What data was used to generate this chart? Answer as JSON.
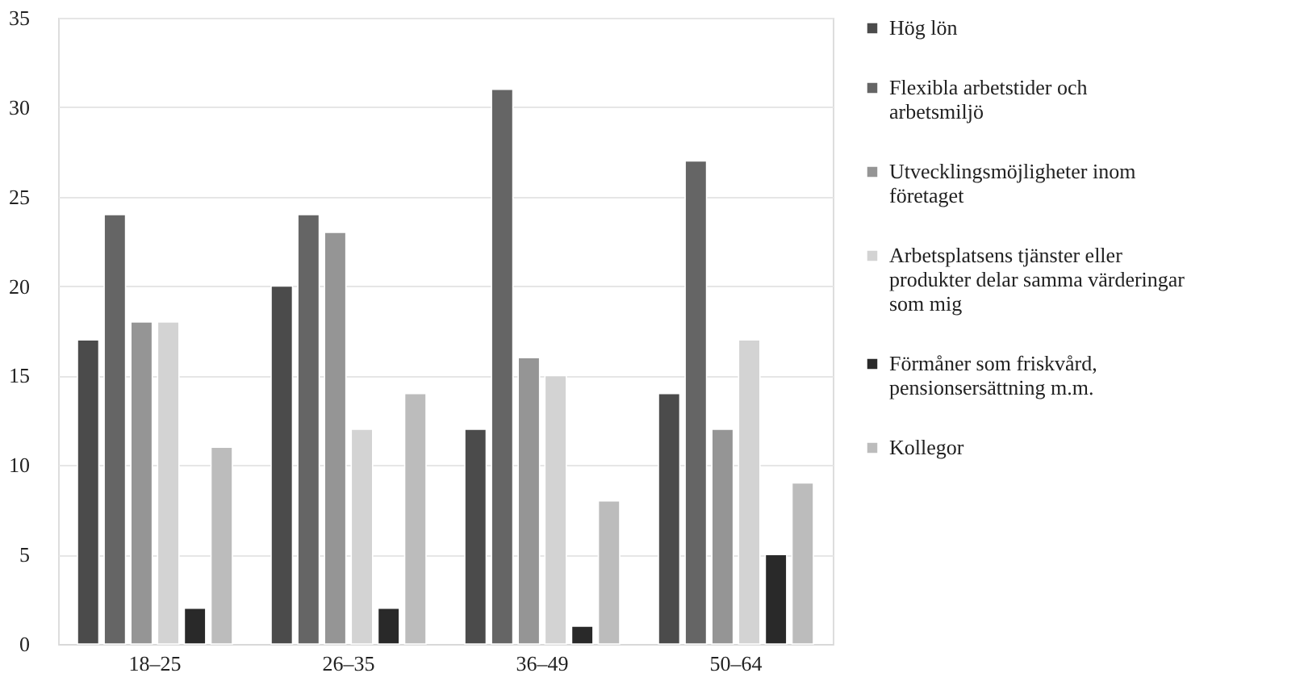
{
  "chart_data": {
    "type": "bar",
    "categories": [
      "18–25",
      "26–35",
      "36–49",
      "50–64"
    ],
    "series": [
      {
        "name": "Hög lön",
        "color": "#4b4b4b",
        "values": [
          17,
          20,
          12,
          14
        ]
      },
      {
        "name": "Flexibla arbetstider och arbetsmiljö",
        "color": "#656565",
        "values": [
          24,
          24,
          31,
          27
        ]
      },
      {
        "name": "Utvecklingsmöjligheter inom företaget",
        "color": "#959595",
        "values": [
          18,
          23,
          16,
          12
        ]
      },
      {
        "name": "Arbetsplatsens tjänster eller produkter delar samma värderingar som mig",
        "color": "#d3d3d3",
        "values": [
          18,
          12,
          15,
          17
        ]
      },
      {
        "name": "Förmåner som friskvård, pensionsersättning m.m.",
        "color": "#292929",
        "values": [
          2,
          2,
          1,
          5
        ]
      },
      {
        "name": "Kollegor",
        "color": "#bcbcbc",
        "values": [
          11,
          14,
          8,
          9
        ]
      }
    ],
    "ylim": [
      0,
      35
    ],
    "yticks": [
      0,
      5,
      10,
      15,
      20,
      25,
      30,
      35
    ],
    "grid": "y",
    "legend": "right"
  }
}
